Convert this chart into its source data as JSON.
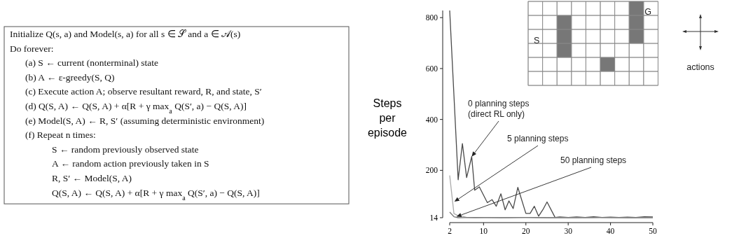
{
  "chart_data": [
    {
      "type": "other",
      "annotations": [
        "Initialize Q(s, a) and Model(s, a) for all s ∈ 𝒮 and a ∈ 𝒜(s)",
        "Do forever:",
        "(a) S ← current (nonterminal) state",
        "(b) A ← ε-greedy(S, Q)",
        "(c) Execute action A; observe resultant reward, R, and state, S′",
        "(d) Q(S, A) ← Q(S, A) + α[R + γ max$_{a}$ Q(S′, a) − Q(S, A)]",
        "(e) Model(S, A) ← R, S′ (assuming deterministic environment)",
        "(f) Repeat n times:",
        "S ← random previously observed state",
        "A ← random action previously taken in S",
        "R, S′ ← Model(S, A)",
        "Q(S, A) ← Q(S, A) + α[R + γ max$_{a}$ Q(S′, a) − Q(S, A)]"
      ]
    },
    {
      "type": "line",
      "ylabel": "Steps\nper\nepisode",
      "xlim": [
        2,
        50
      ],
      "xticks": [
        2,
        10,
        20,
        30,
        40,
        50
      ],
      "ylim": [
        14,
        828
      ],
      "yticks": [
        14,
        200,
        400,
        600,
        800
      ],
      "grid": false,
      "marker": "none",
      "series": [
        {
          "color": "#4a4a4a",
          "x": [
            2,
            4,
            5,
            6,
            7.2,
            7.9,
            9,
            10.9,
            12,
            13,
            14.1,
            15.1,
            16,
            17,
            18.1,
            20,
            21,
            22,
            23,
            24,
            25,
            26.9,
            28,
            30,
            32,
            34,
            36,
            38,
            40,
            42,
            44,
            46,
            48,
            50
          ],
          "values": [
            828,
            163,
            305,
            172,
            254,
            122,
            135,
            73,
            85,
            59,
            108,
            45,
            80,
            50,
            133,
            31,
            31,
            59,
            20,
            45,
            76,
            15,
            17,
            15,
            17,
            15,
            18,
            15,
            16,
            15,
            16,
            15,
            18,
            17
          ]
        },
        {
          "color": "#aaaaaa",
          "x": [
            2,
            3,
            4,
            5,
            6,
            8,
            12,
            16,
            20,
            25,
            30,
            35,
            40,
            45,
            50
          ],
          "values": [
            180,
            30,
            22,
            20,
            15,
            14,
            15,
            14,
            15,
            14,
            15,
            14,
            15,
            14,
            15
          ]
        },
        {
          "color": "#7a7a7a",
          "x": [
            2,
            3,
            4,
            8,
            14,
            20,
            26,
            32,
            38,
            44,
            50
          ],
          "values": [
            36,
            18,
            14,
            15,
            14,
            15,
            14,
            14,
            15,
            14,
            14
          ]
        }
      ],
      "annotations": [
        {
          "text": "0 planning steps\n(direct RL only)",
          "x": 7.2,
          "y": 254
        },
        {
          "text": "5 planning steps",
          "x": 3.1,
          "y": 77
        },
        {
          "text": "50 planning steps",
          "x": 3.6,
          "y": 18
        },
        "S",
        "G",
        "actions"
      ]
    }
  ]
}
